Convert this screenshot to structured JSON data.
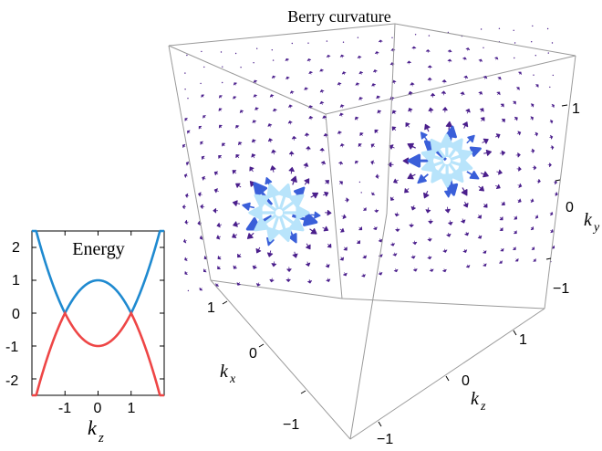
{
  "energy_panel": {
    "title": "Energy",
    "xlabel": "k",
    "xlabel_sub": "z",
    "x_ticks": [
      "-1",
      "0",
      "1"
    ],
    "y_ticks": [
      "2",
      "1",
      "0",
      "-1",
      "-2"
    ],
    "colors": {
      "upper_band": "#1f8ad0",
      "lower_band": "#ee4646"
    },
    "chart_data": {
      "type": "line",
      "xlim": [
        -2,
        2
      ],
      "ylim": [
        -2.5,
        2.5
      ],
      "series": [
        {
          "function": "upper band: |k_z^2 - 1|",
          "x": [
            -2,
            -1.5,
            -1,
            -0.5,
            0,
            0.5,
            1,
            1.5,
            2
          ],
          "values": [
            3,
            1.25,
            0,
            0.75,
            1,
            0.75,
            0,
            1.25,
            3
          ]
        },
        {
          "function": "lower band: -|k_z^2 - 1|",
          "x": [
            -2,
            -1.5,
            -1,
            -0.5,
            0,
            0.5,
            1,
            1.5,
            2
          ],
          "values": [
            -3,
            -1.25,
            0,
            -0.75,
            -1,
            -0.75,
            0,
            -1.25,
            -3
          ]
        }
      ],
      "grid": false
    }
  },
  "berry_panel": {
    "title": "Berry curvature",
    "kx_label": "k",
    "kx_sub": "x",
    "ky_label": "k",
    "ky_sub": "y",
    "kz_label": "k",
    "kz_sub": "z",
    "kx_ticks": [
      "1",
      "0",
      "−1"
    ],
    "kz_ticks": [
      "1",
      "0",
      "−1"
    ],
    "ky_ticks": [
      "1",
      "0",
      "−1"
    ],
    "colors": {
      "arrow_strong": "#3a5fd9",
      "arrow_weak": "#4b1f8c",
      "source": "#b8e4fb"
    }
  }
}
